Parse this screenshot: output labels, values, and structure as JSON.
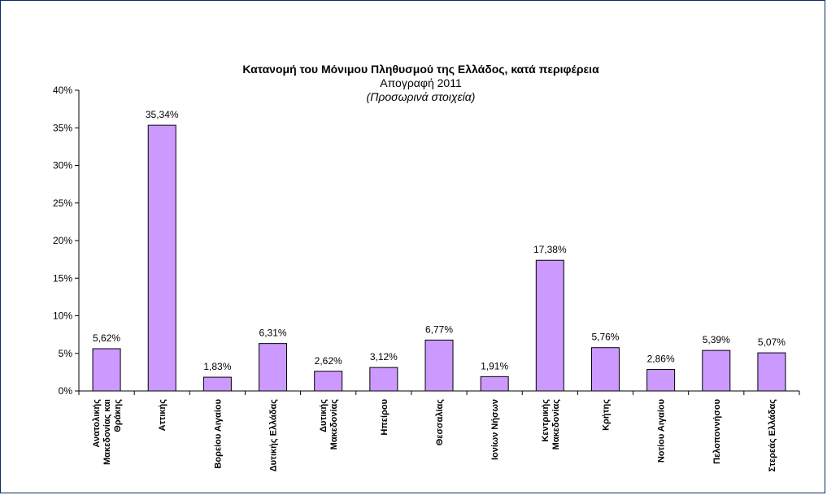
{
  "chart_data": {
    "type": "bar",
    "title": "Κατανομή του Μόνιμου Πληθυσμού της Ελλάδος, κατά περιφέρεια",
    "subtitle": "Απογραφή 2011",
    "note": "(Προσωρινά στοιχεία)",
    "categories": [
      [
        "Ανατολικής",
        "Μακεδονίας και",
        "Θράκης"
      ],
      [
        "Αττικής"
      ],
      [
        "Βορείου Αιγαίου"
      ],
      [
        "Δυτικής Ελλάδας"
      ],
      [
        "Δυτικής",
        "Μακεδονίας"
      ],
      [
        "Ηπείρου"
      ],
      [
        "Θεσσαλίας"
      ],
      [
        "Ιονίων Νήσων"
      ],
      [
        "Κεντρικής",
        "Μακεδονίας"
      ],
      [
        "Κρήτης"
      ],
      [
        "Νοτίου Αιγαίου"
      ],
      [
        "Πελοποννήσου"
      ],
      [
        "Στερεάς Ελλάδας"
      ]
    ],
    "values": [
      5.62,
      35.34,
      1.83,
      6.31,
      2.62,
      3.12,
      6.77,
      1.91,
      17.38,
      5.76,
      2.86,
      5.39,
      5.07
    ],
    "data_labels": [
      "5,62%",
      "35,34%",
      "1,83%",
      "6,31%",
      "2,62%",
      "3,12%",
      "6,77%",
      "1,91%",
      "17,38%",
      "5,76%",
      "2,86%",
      "5,39%",
      "5,07%"
    ],
    "yticks": [
      0,
      5,
      10,
      15,
      20,
      25,
      30,
      35,
      40
    ],
    "ytick_labels": [
      "0%",
      "5%",
      "10%",
      "15%",
      "20%",
      "25%",
      "30%",
      "35%",
      "40%"
    ],
    "ylim": [
      0,
      40
    ],
    "xlabel": "",
    "ylabel": "",
    "grid": false,
    "legend": "none",
    "bar_color": "#cc99ff",
    "bar_edge_color": "#000000"
  }
}
